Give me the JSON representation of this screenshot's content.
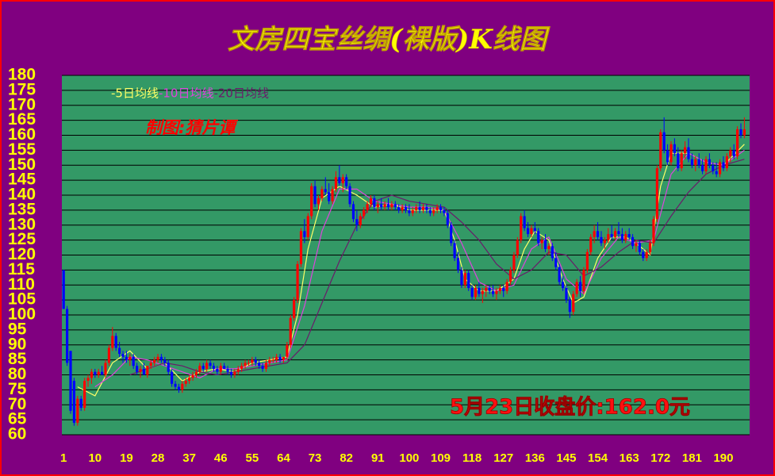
{
  "chart_data": {
    "type": "candlestick",
    "title": "文房四宝丝绸(裸版)K线图",
    "annotations": [
      "制图:猜片谭",
      "5月23日收盘价:162.0元"
    ],
    "ylim": [
      60,
      180
    ],
    "yticks": [
      60,
      65,
      70,
      75,
      80,
      85,
      90,
      95,
      100,
      105,
      110,
      115,
      120,
      125,
      130,
      135,
      140,
      145,
      150,
      155,
      160,
      165,
      170,
      175,
      180
    ],
    "xlim": [
      0.5,
      197.5
    ],
    "xticks": [
      1,
      10,
      19,
      28,
      37,
      46,
      55,
      64,
      73,
      82,
      91,
      100,
      109,
      118,
      127,
      136,
      145,
      154,
      163,
      172,
      181,
      190
    ],
    "grid": true,
    "up_color": "#ff0000",
    "down_color": "#0000ff",
    "x": [
      1,
      2,
      3,
      4,
      5,
      6,
      7,
      8,
      9,
      10,
      11,
      12,
      13,
      14,
      15,
      16,
      17,
      18,
      19,
      20,
      21,
      22,
      23,
      24,
      25,
      26,
      27,
      28,
      29,
      30,
      31,
      32,
      33,
      34,
      35,
      36,
      37,
      38,
      39,
      40,
      41,
      42,
      43,
      44,
      45,
      46,
      47,
      48,
      49,
      50,
      51,
      52,
      53,
      54,
      55,
      56,
      57,
      58,
      59,
      60,
      61,
      62,
      63,
      64,
      65,
      66,
      67,
      68,
      69,
      70,
      71,
      72,
      73,
      74,
      75,
      76,
      77,
      78,
      79,
      80,
      81,
      82,
      83,
      84,
      85,
      86,
      87,
      88,
      89,
      90,
      91,
      92,
      93,
      94,
      95,
      96,
      97,
      98,
      99,
      100,
      101,
      102,
      103,
      104,
      105,
      106,
      107,
      108,
      109,
      110,
      111,
      112,
      113,
      114,
      115,
      116,
      117,
      118,
      119,
      120,
      121,
      122,
      123,
      124,
      125,
      126,
      127,
      128,
      129,
      130,
      131,
      132,
      133,
      134,
      135,
      136,
      137,
      138,
      139,
      140,
      141,
      142,
      143,
      144,
      145,
      146,
      147,
      148,
      149,
      150,
      151,
      152,
      153,
      154,
      155,
      156,
      157,
      158,
      159,
      160,
      161,
      162,
      163,
      164,
      165,
      166,
      167,
      168,
      169,
      170,
      171,
      172,
      173,
      174,
      175,
      176,
      177,
      178,
      179,
      180,
      181,
      182,
      183,
      184,
      185,
      186,
      187,
      188,
      189,
      190,
      191,
      192,
      193,
      194,
      195,
      196
    ],
    "open": [
      115,
      102,
      88,
      78,
      64,
      72,
      69,
      78,
      79,
      81,
      80,
      81,
      80,
      84,
      89,
      93,
      89,
      87,
      86,
      85,
      86,
      83,
      81,
      82,
      80,
      83,
      84,
      85,
      86,
      85,
      84,
      81,
      77,
      76,
      75,
      77,
      78,
      79,
      80,
      81,
      83,
      82,
      84,
      83,
      82,
      81,
      83,
      82,
      81,
      80,
      81,
      82,
      83,
      84,
      84,
      85,
      84,
      83,
      82,
      84,
      85,
      85,
      86,
      85,
      86,
      90,
      99,
      105,
      117,
      128,
      126,
      133,
      143,
      137,
      139,
      142,
      141,
      138,
      142,
      146,
      144,
      146,
      143,
      137,
      132,
      130,
      133,
      135,
      137,
      139,
      136,
      137,
      136,
      137,
      136,
      137,
      136,
      135,
      136,
      135,
      134,
      135,
      136,
      135,
      136,
      135,
      134,
      135,
      136,
      135,
      134,
      130,
      124,
      119,
      115,
      110,
      114,
      109,
      106,
      109,
      107,
      108,
      109,
      108,
      107,
      108,
      109,
      108,
      111,
      115,
      120,
      125,
      133,
      129,
      127,
      129,
      128,
      124,
      125,
      122,
      123,
      119,
      116,
      111,
      109,
      105,
      101,
      107,
      111,
      108,
      115,
      121,
      126,
      128,
      126,
      124,
      125,
      127,
      126,
      128,
      127,
      125,
      127,
      126,
      123,
      124,
      121,
      119,
      121,
      124,
      132,
      149,
      161,
      155,
      151,
      157,
      154,
      149,
      154,
      156,
      152,
      150,
      152,
      150,
      148,
      152,
      150,
      148,
      147,
      151,
      149,
      153,
      155,
      153,
      162,
      160
    ],
    "high": [
      115,
      103,
      88,
      79,
      73,
      73,
      79,
      80,
      82,
      82,
      82,
      83,
      85,
      90,
      96,
      94,
      91,
      88,
      88,
      87,
      87,
      84,
      83,
      84,
      83,
      85,
      86,
      87,
      87,
      86,
      85,
      82,
      78,
      77,
      78,
      79,
      80,
      81,
      82,
      84,
      84,
      85,
      85,
      84,
      83,
      84,
      84,
      83,
      82,
      82,
      83,
      84,
      85,
      85,
      86,
      86,
      85,
      84,
      85,
      86,
      86,
      87,
      87,
      86,
      91,
      100,
      106,
      118,
      129,
      132,
      134,
      144,
      145,
      140,
      143,
      146,
      144,
      143,
      148,
      150,
      147,
      147,
      144,
      138,
      135,
      134,
      136,
      138,
      140,
      140,
      138,
      139,
      138,
      139,
      138,
      138,
      137,
      137,
      137,
      137,
      136,
      137,
      138,
      137,
      137,
      136,
      136,
      137,
      137,
      136,
      135,
      131,
      125,
      121,
      116,
      115,
      115,
      110,
      110,
      111,
      109,
      110,
      110,
      110,
      109,
      110,
      110,
      112,
      116,
      121,
      126,
      134,
      135,
      131,
      130,
      131,
      129,
      126,
      127,
      124,
      124,
      121,
      117,
      113,
      110,
      106,
      108,
      112,
      113,
      116,
      122,
      127,
      130,
      131,
      128,
      126,
      129,
      130,
      129,
      131,
      129,
      128,
      129,
      127,
      125,
      125,
      122,
      122,
      125,
      133,
      150,
      162,
      166,
      157,
      158,
      159,
      156,
      155,
      158,
      159,
      154,
      153,
      154,
      152,
      153,
      154,
      151,
      151,
      152,
      153,
      154,
      156,
      157,
      163,
      164,
      166
    ],
    "low": [
      102,
      83,
      67,
      63,
      63,
      68,
      68,
      76,
      77,
      79,
      79,
      80,
      79,
      83,
      88,
      88,
      86,
      84,
      84,
      83,
      82,
      80,
      79,
      80,
      79,
      82,
      83,
      84,
      84,
      83,
      80,
      76,
      75,
      74,
      74,
      76,
      77,
      78,
      79,
      80,
      81,
      81,
      82,
      81,
      80,
      80,
      82,
      80,
      79,
      79,
      80,
      81,
      82,
      83,
      83,
      83,
      82,
      81,
      81,
      83,
      84,
      84,
      84,
      84,
      85,
      89,
      98,
      104,
      116,
      124,
      125,
      132,
      136,
      135,
      138,
      140,
      137,
      137,
      141,
      143,
      141,
      142,
      136,
      131,
      128,
      129,
      132,
      134,
      136,
      135,
      134,
      135,
      135,
      135,
      135,
      135,
      134,
      134,
      134,
      133,
      133,
      134,
      134,
      134,
      134,
      133,
      133,
      134,
      134,
      133,
      129,
      123,
      118,
      114,
      109,
      109,
      108,
      105,
      105,
      106,
      104,
      106,
      107,
      106,
      105,
      107,
      106,
      107,
      110,
      114,
      119,
      124,
      128,
      126,
      126,
      127,
      123,
      122,
      121,
      120,
      118,
      115,
      110,
      108,
      104,
      99,
      100,
      106,
      106,
      107,
      114,
      120,
      124,
      125,
      123,
      122,
      124,
      125,
      125,
      126,
      124,
      124,
      125,
      122,
      121,
      120,
      118,
      118,
      120,
      123,
      131,
      148,
      154,
      150,
      150,
      153,
      148,
      148,
      152,
      151,
      149,
      148,
      149,
      147,
      147,
      149,
      147,
      146,
      146,
      148,
      148,
      151,
      152,
      152,
      159,
      159
    ],
    "close": [
      102,
      84,
      68,
      64,
      72,
      69,
      78,
      79,
      81,
      80,
      81,
      80,
      84,
      89,
      93,
      89,
      87,
      86,
      85,
      86,
      83,
      81,
      82,
      80,
      83,
      84,
      85,
      86,
      85,
      84,
      81,
      77,
      76,
      75,
      77,
      78,
      79,
      80,
      81,
      83,
      82,
      84,
      83,
      82,
      81,
      83,
      82,
      81,
      80,
      81,
      82,
      83,
      84,
      84,
      85,
      84,
      83,
      82,
      84,
      85,
      85,
      86,
      85,
      86,
      90,
      99,
      105,
      117,
      128,
      126,
      133,
      143,
      137,
      139,
      142,
      141,
      138,
      142,
      146,
      144,
      146,
      143,
      137,
      132,
      130,
      133,
      135,
      137,
      139,
      136,
      137,
      136,
      137,
      136,
      137,
      136,
      135,
      136,
      135,
      134,
      135,
      136,
      135,
      136,
      135,
      134,
      135,
      136,
      135,
      134,
      130,
      124,
      119,
      115,
      110,
      114,
      109,
      106,
      109,
      107,
      108,
      109,
      108,
      107,
      108,
      109,
      108,
      111,
      115,
      120,
      125,
      133,
      129,
      127,
      129,
      128,
      124,
      125,
      122,
      123,
      119,
      116,
      111,
      109,
      105,
      101,
      107,
      111,
      108,
      115,
      121,
      126,
      128,
      126,
      124,
      125,
      127,
      126,
      128,
      127,
      125,
      127,
      126,
      123,
      124,
      121,
      119,
      121,
      124,
      132,
      149,
      161,
      155,
      151,
      157,
      154,
      149,
      154,
      156,
      152,
      150,
      152,
      150,
      148,
      152,
      150,
      148,
      147,
      151,
      149,
      153,
      155,
      153,
      162,
      160,
      162
    ],
    "series": [
      {
        "name": "-5日均线",
        "color": "#ffff66",
        "x": [
          5,
          10,
          15,
          20,
          25,
          30,
          35,
          40,
          45,
          50,
          55,
          60,
          65,
          68,
          71,
          75,
          80,
          85,
          90,
          95,
          100,
          105,
          110,
          113,
          116,
          120,
          125,
          130,
          133,
          136,
          140,
          144,
          147,
          150,
          154,
          158,
          162,
          166,
          169,
          172,
          175,
          180,
          185,
          190,
          196
        ],
        "values": [
          76,
          73,
          84,
          88,
          82,
          84,
          78,
          81,
          82,
          81,
          84,
          85,
          86,
          100,
          122,
          139,
          143,
          140,
          136,
          137,
          135,
          135,
          135,
          125,
          112,
          108,
          108,
          112,
          122,
          128,
          125,
          112,
          104,
          106,
          119,
          126,
          126,
          123,
          120,
          143,
          154,
          154,
          151,
          150,
          157
        ]
      },
      {
        "name": "-10日均线",
        "color": "#dd44dd",
        "x": [
          10,
          15,
          20,
          25,
          30,
          35,
          40,
          45,
          50,
          55,
          60,
          65,
          70,
          75,
          80,
          85,
          90,
          95,
          100,
          105,
          110,
          115,
          120,
          125,
          130,
          135,
          140,
          145,
          150,
          155,
          160,
          165,
          170,
          175,
          180,
          185,
          190,
          196
        ],
        "values": [
          76,
          80,
          86,
          85,
          83,
          81,
          79,
          82,
          82,
          83,
          84,
          85,
          103,
          128,
          142,
          142,
          138,
          137,
          136,
          136,
          135,
          124,
          111,
          108,
          110,
          122,
          126,
          112,
          107,
          119,
          126,
          124,
          125,
          147,
          154,
          151,
          150,
          155
        ]
      },
      {
        "name": "-20日均线",
        "color": "#6a1a6a",
        "x": [
          20,
          25,
          30,
          35,
          40,
          45,
          50,
          55,
          60,
          65,
          70,
          75,
          80,
          85,
          90,
          95,
          100,
          105,
          110,
          115,
          120,
          125,
          130,
          135,
          140,
          145,
          150,
          155,
          160,
          165,
          170,
          175,
          180,
          185,
          190,
          196
        ],
        "values": [
          80,
          82,
          84,
          83,
          81,
          80,
          81,
          82,
          83,
          84,
          90,
          104,
          118,
          130,
          138,
          140,
          138,
          137,
          136,
          131,
          125,
          117,
          112,
          115,
          121,
          120,
          113,
          116,
          121,
          125,
          124,
          133,
          141,
          147,
          150,
          152
        ]
      }
    ]
  }
}
